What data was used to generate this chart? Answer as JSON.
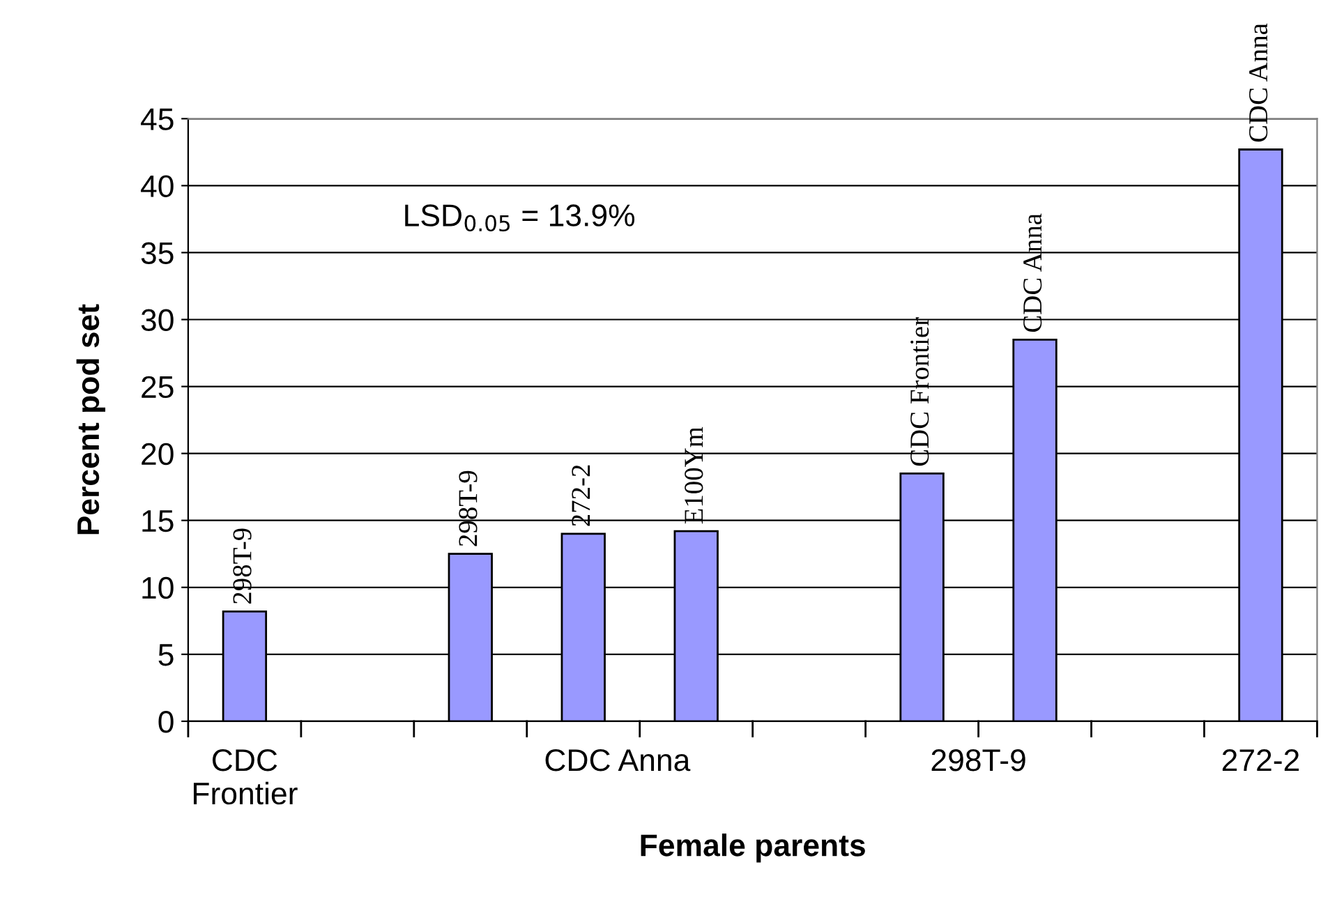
{
  "chart_data": {
    "type": "bar",
    "xlabel": "Female parents",
    "ylabel": "Percent pod set",
    "categories": [
      "298T-9",
      null,
      "298T-9",
      "272-2",
      "E100Ym",
      null,
      "CDC Frontier",
      "CDC Anna",
      null,
      "CDC Anna"
    ],
    "values": [
      8.2,
      null,
      12.5,
      14.0,
      14.2,
      null,
      18.5,
      28.5,
      null,
      42.7
    ],
    "color": "#9999ff",
    "ylim": [
      0,
      45
    ],
    "yticks": [
      0,
      5,
      10,
      15,
      20,
      25,
      30,
      35,
      40,
      45
    ],
    "grid": "y",
    "annotations": [
      "LSD$_{0.05}$ = 13.9%",
      "CDC\nFrontier",
      "CDC Anna",
      "298T-9",
      "272-2"
    ]
  }
}
